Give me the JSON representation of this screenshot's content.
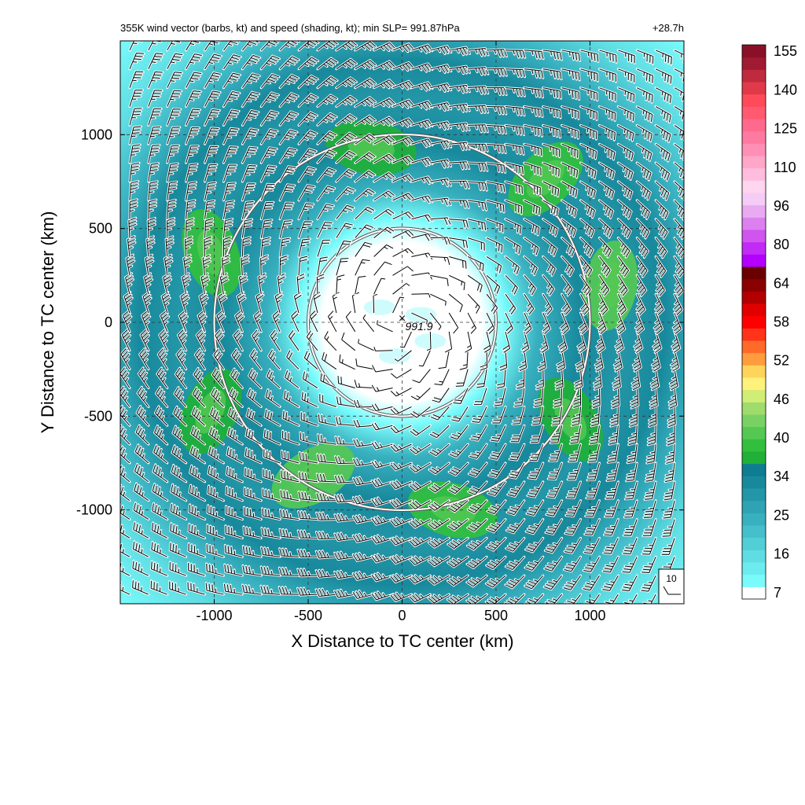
{
  "chart_data": {
    "type": "heatmap",
    "title": "355K wind vector (barbs, kt) and speed (shading, kt); min SLP= 991.87hPa",
    "time_label": "+28.7h",
    "xlabel": "X Distance to TC center (km)",
    "ylabel": "Y Distance to TC center (km)",
    "xlim": [
      -1500,
      1500
    ],
    "ylim": [
      -1500,
      1500
    ],
    "xticks": [
      -1000,
      -500,
      0,
      500,
      1000
    ],
    "yticks": [
      -1000,
      -500,
      0,
      500,
      1000
    ],
    "grid": true,
    "grid_style": "dashed",
    "center_marker": {
      "x": 0,
      "y": 0,
      "label": "991.9"
    },
    "range_rings_km": [
      500,
      1000
    ],
    "reference_barb_label": "10",
    "colorbar": {
      "labels": [
        "7",
        "16",
        "25",
        "34",
        "40",
        "46",
        "52",
        "58",
        "64",
        "80",
        "96",
        "110",
        "125",
        "140",
        "155"
      ],
      "levels": [
        7,
        10,
        13,
        16,
        19,
        22,
        25,
        28,
        31,
        34,
        36,
        38,
        40,
        42,
        44,
        46,
        48,
        50,
        52,
        54,
        56,
        58,
        60,
        62,
        64,
        69,
        75,
        80,
        85,
        91,
        96,
        101,
        106,
        110,
        115,
        120,
        125,
        130,
        135,
        140,
        145,
        150,
        155
      ],
      "colors": [
        "#ffffff",
        "#79fbfb",
        "#6cecef",
        "#5fdde3",
        "#52ced7",
        "#45bfcb",
        "#38b0bf",
        "#2ea3b3",
        "#2396a7",
        "#18899c",
        "#0f7c92",
        "#20b038",
        "#32bf3e",
        "#55c854",
        "#79d164",
        "#a0dc6b",
        "#d0ed76",
        "#fff27a",
        "#ffd45a",
        "#ff9d3e",
        "#ff6a2a",
        "#ff3418",
        "#ff0000",
        "#e00000",
        "#b20000",
        "#8b0000",
        "#6a0000",
        "#b400ff",
        "#c22af5",
        "#cf55ee",
        "#dc80ef",
        "#e9aaf2",
        "#f4ccf6",
        "#ffd5f0",
        "#ffbddd",
        "#ffa6c9",
        "#ff8fb5",
        "#ff7aa0",
        "#ff6a8c",
        "#ff5a70",
        "#ff4a5a",
        "#e03a4a",
        "#c02a3e",
        "#a01a32",
        "#8a1028"
      ],
      "tick_levels": [
        7,
        16,
        25,
        34,
        40,
        46,
        52,
        58,
        64,
        80,
        96,
        110,
        125,
        140,
        155
      ]
    },
    "wind_field": {
      "description_values": "speed in kt by radius",
      "rmw_km": 1050,
      "max_speed_kt": 38,
      "inner_calm_radius_km": 300,
      "rainbands": [
        {
          "angle_deg": 100,
          "radius_km": 1050,
          "speed_kt": 37
        },
        {
          "angle_deg": 45,
          "radius_km": 1200,
          "speed_kt": 37
        },
        {
          "angle_deg": 10,
          "radius_km": 1250,
          "speed_kt": 37
        },
        {
          "angle_deg": -30,
          "radius_km": 1150,
          "speed_kt": 37
        },
        {
          "angle_deg": -75,
          "radius_km": 1150,
          "speed_kt": 37
        },
        {
          "angle_deg": -120,
          "radius_km": 1050,
          "speed_kt": 37
        },
        {
          "angle_deg": -155,
          "radius_km": 1250,
          "speed_kt": 37
        },
        {
          "angle_deg": 160,
          "radius_km": 1200,
          "speed_kt": 37
        }
      ]
    }
  }
}
